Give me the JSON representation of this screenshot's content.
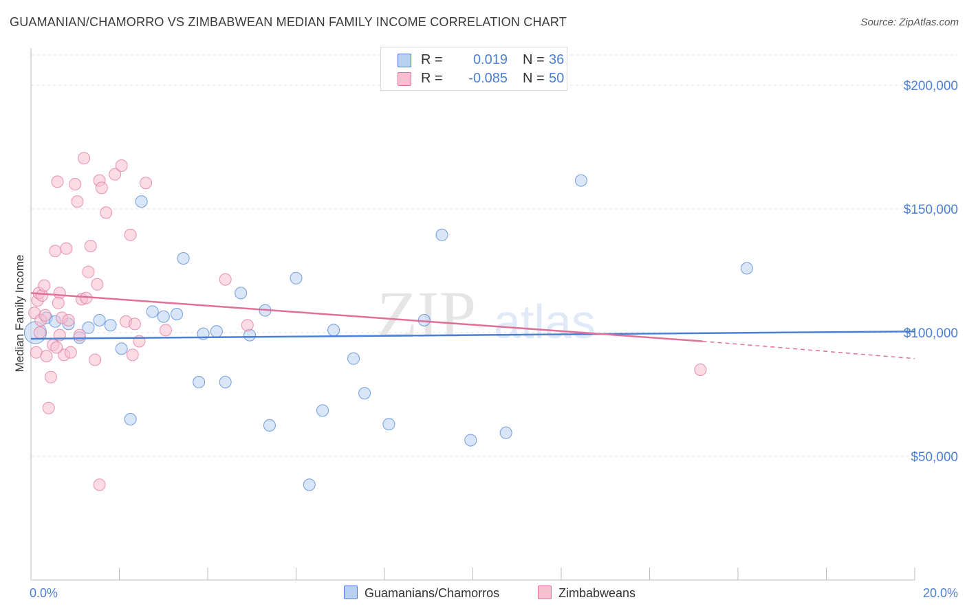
{
  "title": "GUAMANIAN/CHAMORRO VS ZIMBABWEAN MEDIAN FAMILY INCOME CORRELATION CHART",
  "source": "Source: ZipAtlas.com",
  "watermark": {
    "zip": "ZIP",
    "atlas": "atlas"
  },
  "legend": {
    "r_label": "R =",
    "n_label": "N =",
    "rows": [
      {
        "r": "0.019",
        "n": "36",
        "color": "#4a7fd4",
        "fill": "#b8d1f3"
      },
      {
        "r": "-0.085",
        "n": "50",
        "color": "#e07099",
        "fill": "#f7bfd0"
      }
    ]
  },
  "bottom_legend": [
    {
      "label": "Guamanians/Chamorros",
      "fill": "#b8d1f3",
      "border": "#4a7fd4"
    },
    {
      "label": "Zimbabweans",
      "fill": "#f7bfd0",
      "border": "#e07099"
    }
  ],
  "chart_data": {
    "type": "scatter",
    "title": "GUAMANIAN/CHAMORRO VS ZIMBABWEAN MEDIAN FAMILY INCOME CORRELATION CHART",
    "xlabel": "",
    "ylabel": "Median Family Income",
    "xlim": [
      0,
      20
    ],
    "ylim": [
      0,
      215000
    ],
    "x_tick_labels": [
      {
        "value": 0,
        "label": "0.0%"
      },
      {
        "value": 20,
        "label": "20.0%"
      }
    ],
    "y_tick_labels": [
      {
        "value": 50000,
        "label": "$50,000"
      },
      {
        "value": 100000,
        "label": "$100,000"
      },
      {
        "value": 150000,
        "label": "$150,000"
      },
      {
        "value": 200000,
        "label": "$200,000"
      }
    ],
    "series": [
      {
        "name": "Guamanians/Chamorros",
        "color": "#4a7fd4",
        "fill": "#b8d1f3",
        "trend": {
          "x0": 0,
          "y0": 97500,
          "x1": 20,
          "y1": 100500
        },
        "points": [
          [
            0.1,
            100000
          ],
          [
            0.35,
            106000
          ],
          [
            0.55,
            104500
          ],
          [
            0.85,
            103500
          ],
          [
            1.1,
            98000
          ],
          [
            1.3,
            102000
          ],
          [
            1.55,
            105000
          ],
          [
            1.8,
            103000
          ],
          [
            2.05,
            93500
          ],
          [
            2.25,
            65000
          ],
          [
            2.5,
            153000
          ],
          [
            2.75,
            108500
          ],
          [
            3.0,
            106500
          ],
          [
            3.3,
            107500
          ],
          [
            3.45,
            130000
          ],
          [
            3.8,
            80000
          ],
          [
            3.9,
            99500
          ],
          [
            4.2,
            100500
          ],
          [
            4.4,
            80000
          ],
          [
            4.75,
            116000
          ],
          [
            4.95,
            99000
          ],
          [
            5.3,
            109000
          ],
          [
            5.4,
            62500
          ],
          [
            6.0,
            122000
          ],
          [
            6.3,
            38500
          ],
          [
            6.6,
            68500
          ],
          [
            6.85,
            101000
          ],
          [
            7.3,
            89500
          ],
          [
            7.55,
            75500
          ],
          [
            8.1,
            63000
          ],
          [
            8.9,
            105000
          ],
          [
            9.3,
            139500
          ],
          [
            9.95,
            56500
          ],
          [
            10.75,
            59500
          ],
          [
            12.45,
            161500
          ],
          [
            16.2,
            126000
          ]
        ]
      },
      {
        "name": "Zimbabweans",
        "color": "#e07099",
        "fill": "#f7bfd0",
        "trend": {
          "x0": 0,
          "y0": 116000,
          "x1": 15.2,
          "y1": 96500
        },
        "trend_ext": {
          "x0": 15.2,
          "y0": 96500,
          "x1": 20,
          "y1": 89500
        },
        "points": [
          [
            0.08,
            108000
          ],
          [
            0.12,
            92000
          ],
          [
            0.15,
            113000
          ],
          [
            0.18,
            116000
          ],
          [
            0.2,
            100000
          ],
          [
            0.22,
            105000
          ],
          [
            0.25,
            115000
          ],
          [
            0.3,
            119000
          ],
          [
            0.32,
            107000
          ],
          [
            0.35,
            90500
          ],
          [
            0.4,
            69500
          ],
          [
            0.45,
            82000
          ],
          [
            0.5,
            95000
          ],
          [
            0.55,
            133000
          ],
          [
            0.6,
            161000
          ],
          [
            0.65,
            99000
          ],
          [
            0.7,
            106000
          ],
          [
            0.75,
            91000
          ],
          [
            0.8,
            134000
          ],
          [
            0.85,
            105000
          ],
          [
            0.9,
            92000
          ],
          [
            1.0,
            160000
          ],
          [
            0.65,
            116000
          ],
          [
            1.05,
            153000
          ],
          [
            1.1,
            99000
          ],
          [
            1.15,
            113500
          ],
          [
            0.62,
            112000
          ],
          [
            1.2,
            170500
          ],
          [
            1.25,
            114000
          ],
          [
            1.3,
            124500
          ],
          [
            0.58,
            94000
          ],
          [
            1.35,
            135000
          ],
          [
            1.45,
            89000
          ],
          [
            1.5,
            119500
          ],
          [
            1.55,
            161500
          ],
          [
            1.6,
            158500
          ],
          [
            1.7,
            148500
          ],
          [
            1.9,
            164000
          ],
          [
            2.05,
            167500
          ],
          [
            2.15,
            104500
          ],
          [
            2.25,
            139500
          ],
          [
            2.3,
            91000
          ],
          [
            2.35,
            103500
          ],
          [
            2.45,
            96500
          ],
          [
            2.6,
            160500
          ],
          [
            3.05,
            101000
          ],
          [
            4.4,
            121500
          ],
          [
            4.9,
            103000
          ],
          [
            15.15,
            85000
          ],
          [
            1.55,
            38500
          ]
        ]
      }
    ]
  }
}
